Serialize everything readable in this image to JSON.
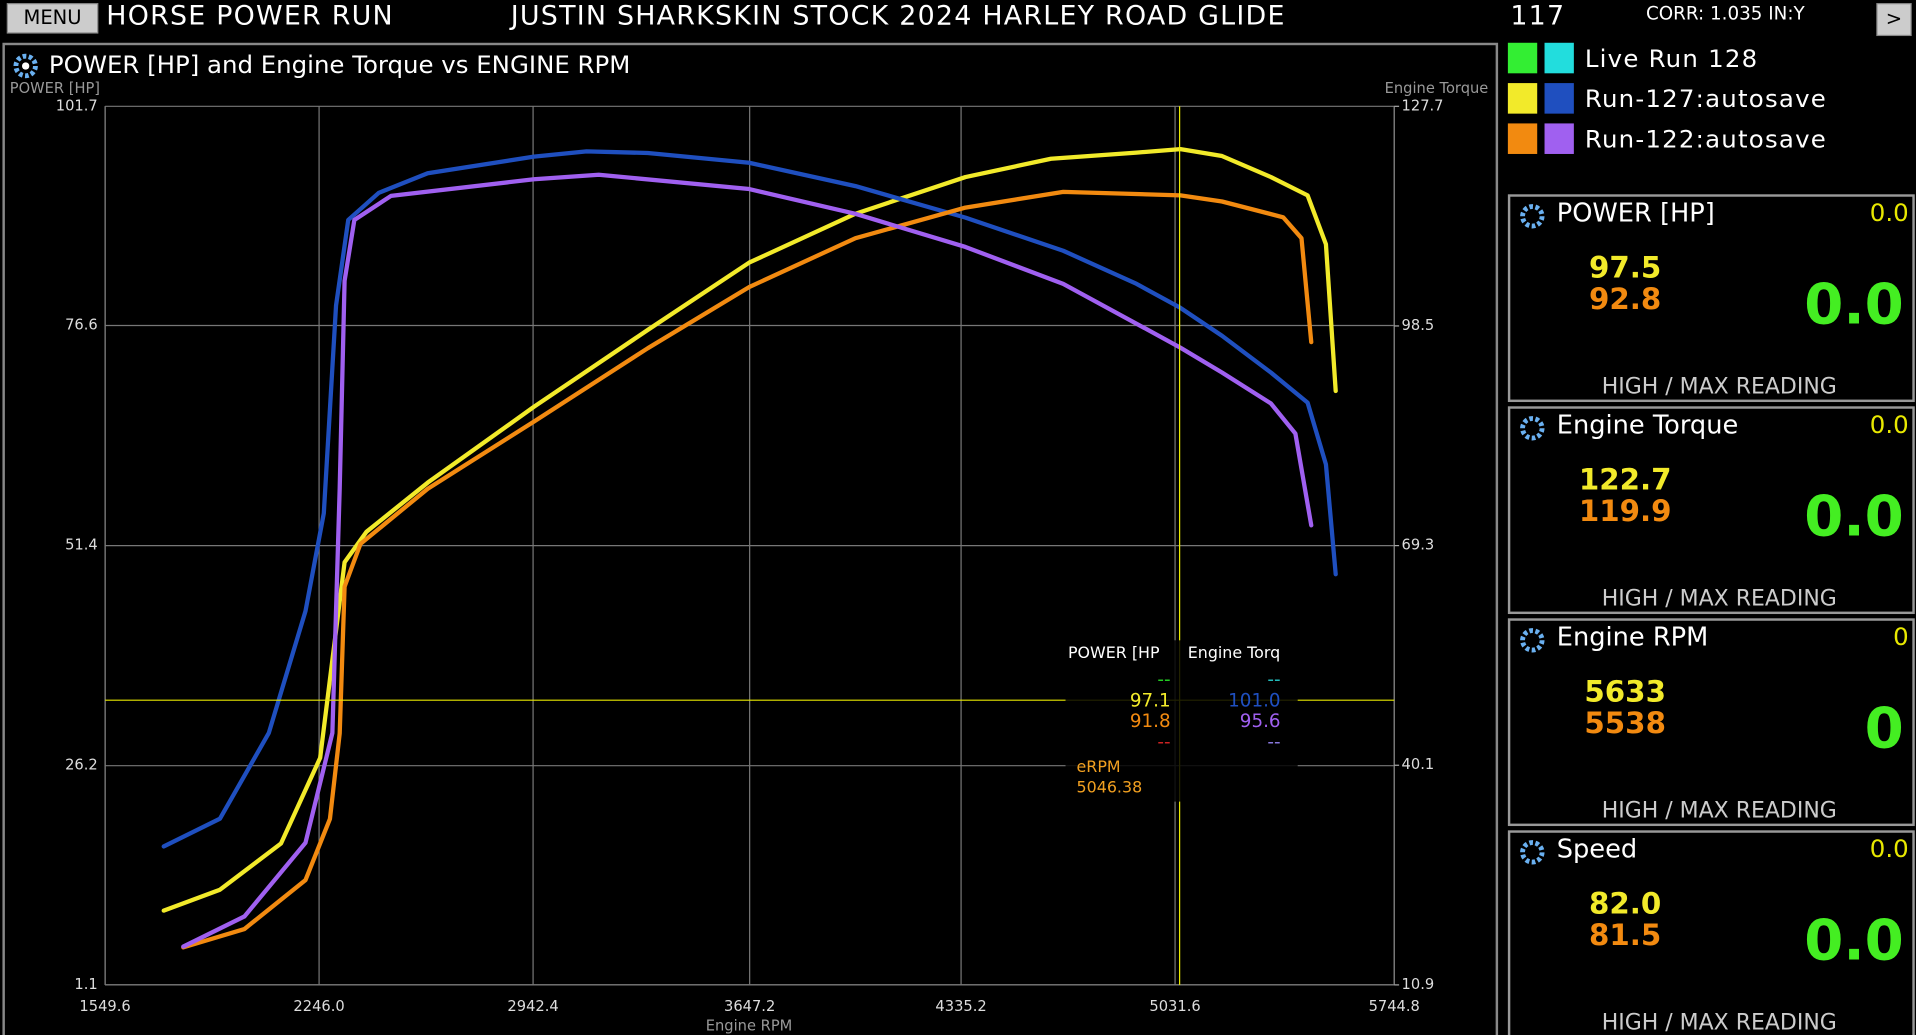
{
  "header": {
    "menu": "MENU",
    "mode": "HORSE POWER RUN",
    "vehicle": "JUSTIN SHARKSKIN STOCK 2024 HARLEY ROAD GLIDE",
    "number": "117",
    "correction": "CORR: 1.035 IN:Y",
    "next": ">"
  },
  "chart_data": {
    "type": "line",
    "title": "POWER [HP] and Engine Torque vs ENGINE RPM",
    "y_label": "POWER [HP]",
    "y2_label": "Engine Torque",
    "x_label": "Engine RPM",
    "xlim": [
      1549.6,
      5744.8
    ],
    "xticks": [
      1549.6,
      {
        "value": 2246,
        "label": "2246.0"
      },
      2942.4,
      3647.2,
      4335.2,
      5031.6,
      5744.8
    ],
    "ylim": [
      1.1,
      101.7
    ],
    "yticks": [
      1.1,
      26.2,
      51.4,
      76.6,
      101.7
    ],
    "y2lim": [
      10.9,
      127.7
    ],
    "y2ticks": [
      10.9,
      40.1,
      69.3,
      98.5,
      127.7
    ],
    "grid": true,
    "runs": [
      {
        "name": "Live Run  128",
        "series": [
          {
            "color": "#33ee33",
            "x": [],
            "values": []
          },
          {
            "color": "#22dddd",
            "axis": "y2",
            "x": [],
            "values": []
          }
        ]
      },
      {
        "name": "Run-127:autosave",
        "series": [
          {
            "color": "#f2ea2a",
            "x": [
              1740.5,
              1923.4,
              2122.3,
              2249.6,
              2289.3,
              2329.1,
              2400.7,
              2599.5,
              2945.5,
              3315.4,
              3645.5,
              3991.4,
              4349.4,
              4627.8,
              4906.2,
              5049.4,
              5184.6,
              5343.7,
              5463.0,
              5522.6,
              5554.4
            ],
            "values": [
              9.6,
              12.0,
              17.3,
              27.1,
              38.3,
              49.5,
              53.0,
              58.6,
              67.3,
              76.1,
              83.8,
              89.4,
              93.6,
              95.7,
              96.4,
              96.8,
              96.0,
              93.6,
              91.5,
              85.9,
              69.1
            ]
          },
          {
            "color": "#1f4fbf",
            "axis": "y2",
            "x": [
              1740.5,
              1923.4,
              2082.5,
              2201.8,
              2261.5,
              2301.3,
              2341.0,
              2440.4,
              2599.5,
              2945.5,
              3116.5,
              3315.4,
              3645.5,
              3991.4,
              4349.4,
              4667.6,
              4906.2,
              5049.4,
              5184.6,
              5343.7,
              5463.0,
              5522.6,
              5554.4
            ],
            "values": [
              29.3,
              33.0,
              44.4,
              60.6,
              73.6,
              101.2,
              112.6,
              116.2,
              118.8,
              121.0,
              121.7,
              121.5,
              120.2,
              117.1,
              112.9,
              108.5,
              104.1,
              100.9,
              97.2,
              92.3,
              88.3,
              80.1,
              65.5
            ]
          }
        ]
      },
      {
        "name": "Run-122:autosave",
        "series": [
          {
            "color": "#f28a10",
            "x": [
              1804.1,
              2003.0,
              2201.8,
              2281.4,
              2313.2,
              2329.1,
              2380.8,
              2599.5,
              2945.5,
              3315.4,
              3645.5,
              3991.4,
              4349.4,
              4667.6,
              5049.4,
              5184.6,
              5383.4,
              5443.1,
              5474.9
            ],
            "values": [
              5.4,
              7.5,
              13.1,
              20.1,
              29.9,
              46.7,
              51.6,
              57.9,
              65.6,
              74.0,
              81.0,
              86.6,
              90.1,
              91.9,
              91.5,
              90.8,
              89.0,
              86.6,
              74.7
            ]
          },
          {
            "color": "#a060f0",
            "axis": "y2",
            "x": [
              1804.1,
              2003.0,
              2201.8,
              2289.3,
              2313.2,
              2329.1,
              2360.9,
              2480.2,
              2945.5,
              3156.3,
              3645.5,
              3991.4,
              4349.4,
              4667.6,
              4906.2,
              5049.4,
              5184.6,
              5343.7,
              5423.2,
              5474.9
            ],
            "values": [
              16.0,
              20.0,
              29.8,
              44.4,
              76.9,
              104.5,
              112.6,
              115.8,
              118.0,
              118.6,
              116.7,
              113.4,
              109.0,
              104.1,
              98.8,
              95.6,
              92.3,
              88.2,
              84.2,
              72.0
            ]
          }
        ]
      }
    ],
    "cursor": {
      "x_label": "eRPM",
      "x": 5046.38,
      "y": 33.7,
      "color": "#e8e800"
    },
    "readout": {
      "headers": [
        "POWER [HP",
        "Engine Torq"
      ],
      "rows": [
        [
          {
            "text": "--",
            "color": "#22cc22"
          },
          {
            "text": "--",
            "color": "#22bbbb"
          }
        ],
        [
          {
            "text": "97.1",
            "color": "#f2ea2a"
          },
          {
            "text": "101.0",
            "color": "#1f4fbf"
          }
        ],
        [
          {
            "text": "91.8",
            "color": "#f28a10"
          },
          {
            "text": "95.6",
            "color": "#a060f0"
          }
        ],
        [
          {
            "text": "--",
            "color": "#cc2222"
          },
          {
            "text": "--",
            "color": "#8877dd"
          }
        ]
      ]
    }
  },
  "gauges": [
    {
      "title": "POWER [HP]",
      "current": "0.0",
      "high_a": "97.5",
      "high_b": "92.8",
      "live": "0.0",
      "footer": "HIGH / MAX READING"
    },
    {
      "title": "Engine Torque",
      "current": "0.0",
      "high_a": "122.7",
      "high_b": "119.9",
      "live": "0.0",
      "footer": "HIGH / MAX READING"
    },
    {
      "title": "Engine RPM",
      "current": "0",
      "high_a": "5633",
      "high_b": "5538",
      "live": "0",
      "footer": "HIGH / MAX READING"
    },
    {
      "title": "Speed",
      "current": "0.0",
      "high_a": "82.0",
      "high_b": "81.5",
      "live": "0.0",
      "footer": "HIGH / MAX READING"
    }
  ]
}
